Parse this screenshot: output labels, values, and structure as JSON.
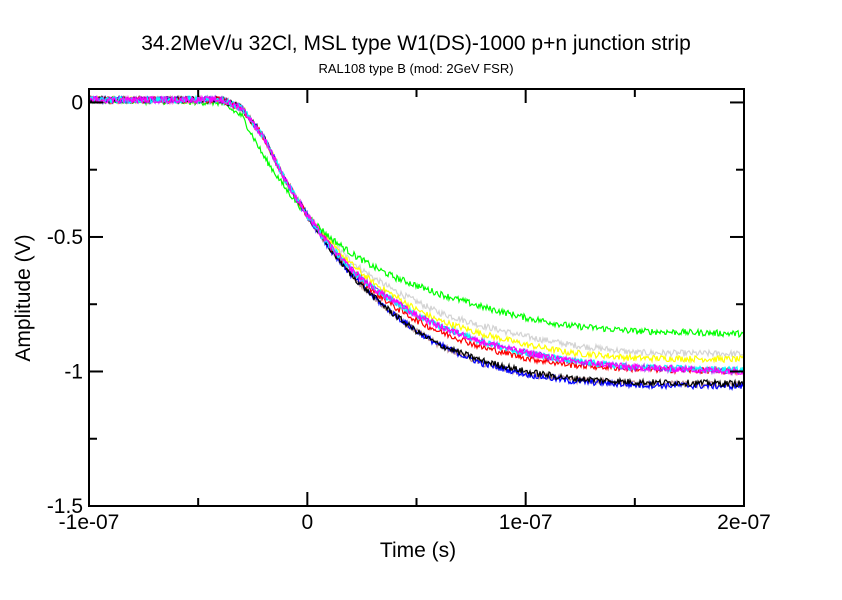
{
  "chart_data": {
    "type": "line",
    "title": "34.2MeV/u 32Cl, MSL type W1(DS)-1000 p+n junction strip",
    "subtitle": "RAL108 type B (mod: 2GeV FSR)",
    "xlabel": "Time (s)",
    "ylabel": "Amplitude (V)",
    "xlim": [
      -1e-07,
      2e-07
    ],
    "ylim": [
      -1.5,
      0.05
    ],
    "xticks": [
      -1e-07,
      0,
      1e-07,
      2e-07
    ],
    "xtick_labels": [
      "-1e-07",
      "0",
      "1e-07",
      "2e-07"
    ],
    "xminor": [
      -5e-08,
      5e-08,
      1.5e-07
    ],
    "yticks": [
      0,
      -0.5,
      -1,
      -1.5
    ],
    "ytick_labels": [
      "0",
      "-0.5",
      "-1",
      "-1.5"
    ],
    "yminor": [
      -0.25,
      -0.75,
      -1.25
    ],
    "grid": false,
    "noise_amplitude": 0.012,
    "x": [
      -1e-07,
      -4e-08,
      -3e-08,
      -2e-08,
      -1e-08,
      0,
      1e-08,
      2e-08,
      3e-08,
      4e-08,
      5e-08,
      6e-08,
      8e-08,
      1e-07,
      1.2e-07,
      1.5e-07,
      2e-07
    ],
    "series": [
      {
        "name": "trace-gray",
        "color": "#d3d3d3",
        "values": [
          0.01,
          0.01,
          -0.02,
          -0.13,
          -0.29,
          -0.42,
          -0.51,
          -0.59,
          -0.65,
          -0.7,
          -0.74,
          -0.78,
          -0.83,
          -0.87,
          -0.9,
          -0.93,
          -0.935
        ]
      },
      {
        "name": "trace-yellow",
        "color": "#ffff00",
        "values": [
          0.01,
          0.01,
          -0.02,
          -0.13,
          -0.29,
          -0.42,
          -0.52,
          -0.6,
          -0.67,
          -0.72,
          -0.77,
          -0.81,
          -0.86,
          -0.9,
          -0.93,
          -0.95,
          -0.955
        ]
      },
      {
        "name": "trace-green",
        "color": "#00ff00",
        "values": [
          0.01,
          0.0,
          -0.05,
          -0.2,
          -0.32,
          -0.42,
          -0.5,
          -0.56,
          -0.61,
          -0.65,
          -0.68,
          -0.71,
          -0.76,
          -0.8,
          -0.83,
          -0.85,
          -0.86
        ]
      },
      {
        "name": "trace-brown",
        "color": "#bc8f8f",
        "values": [
          0.01,
          0.01,
          -0.02,
          -0.13,
          -0.29,
          -0.42,
          -0.54,
          -0.64,
          -0.72,
          -0.79,
          -0.85,
          -0.9,
          -0.97,
          -1.01,
          -1.03,
          -1.045,
          -1.05
        ]
      },
      {
        "name": "trace-blue",
        "color": "#0000ff",
        "values": [
          0.01,
          0.01,
          -0.02,
          -0.13,
          -0.29,
          -0.42,
          -0.54,
          -0.64,
          -0.72,
          -0.79,
          -0.85,
          -0.9,
          -0.97,
          -1.01,
          -1.035,
          -1.05,
          -1.055
        ]
      },
      {
        "name": "trace-black",
        "color": "#000000",
        "values": [
          0.01,
          0.01,
          -0.02,
          -0.13,
          -0.29,
          -0.42,
          -0.54,
          -0.64,
          -0.72,
          -0.79,
          -0.85,
          -0.9,
          -0.96,
          -1.0,
          -1.025,
          -1.04,
          -1.045
        ]
      },
      {
        "name": "trace-red",
        "color": "#ff0000",
        "values": [
          0.01,
          0.01,
          -0.02,
          -0.13,
          -0.29,
          -0.42,
          -0.53,
          -0.62,
          -0.7,
          -0.76,
          -0.81,
          -0.85,
          -0.91,
          -0.95,
          -0.975,
          -0.99,
          -1.0
        ]
      },
      {
        "name": "trace-purple",
        "color": "#a020f0",
        "values": [
          0.01,
          0.01,
          -0.02,
          -0.13,
          -0.29,
          -0.42,
          -0.53,
          -0.62,
          -0.69,
          -0.74,
          -0.79,
          -0.83,
          -0.89,
          -0.93,
          -0.96,
          -0.985,
          -1.0
        ]
      },
      {
        "name": "trace-cyan",
        "color": "#00ffff",
        "values": [
          0.01,
          0.01,
          -0.02,
          -0.13,
          -0.29,
          -0.42,
          -0.53,
          -0.62,
          -0.69,
          -0.74,
          -0.79,
          -0.83,
          -0.89,
          -0.93,
          -0.96,
          -0.985,
          -0.995
        ]
      },
      {
        "name": "trace-magenta",
        "color": "#ff00ff",
        "values": [
          0.01,
          0.01,
          -0.02,
          -0.13,
          -0.29,
          -0.42,
          -0.53,
          -0.62,
          -0.69,
          -0.74,
          -0.79,
          -0.83,
          -0.89,
          -0.93,
          -0.96,
          -0.985,
          -1.0
        ]
      }
    ]
  }
}
